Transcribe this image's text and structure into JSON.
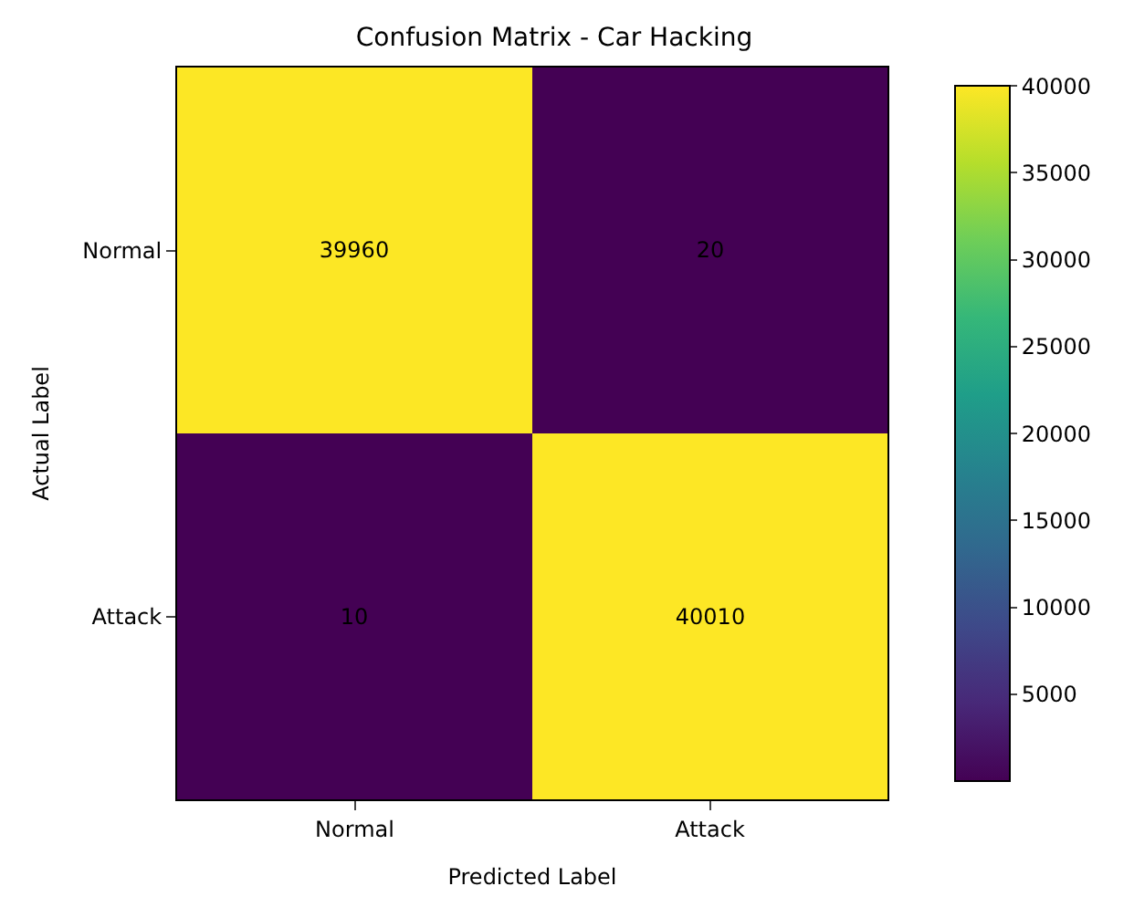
{
  "chart_data": {
    "type": "heatmap",
    "title": "Confusion Matrix - Car Hacking",
    "xlabel": "Predicted Label",
    "ylabel": "Actual Label",
    "categories": [
      "Normal",
      "Attack"
    ],
    "y_categories": [
      "Normal",
      "Attack"
    ],
    "cells": [
      [
        39960,
        20
      ],
      [
        10,
        40010
      ]
    ],
    "data_labels": true,
    "clim": [
      10,
      40010
    ],
    "cticks": [
      5000,
      10000,
      15000,
      20000,
      25000,
      30000,
      35000,
      40000
    ]
  }
}
